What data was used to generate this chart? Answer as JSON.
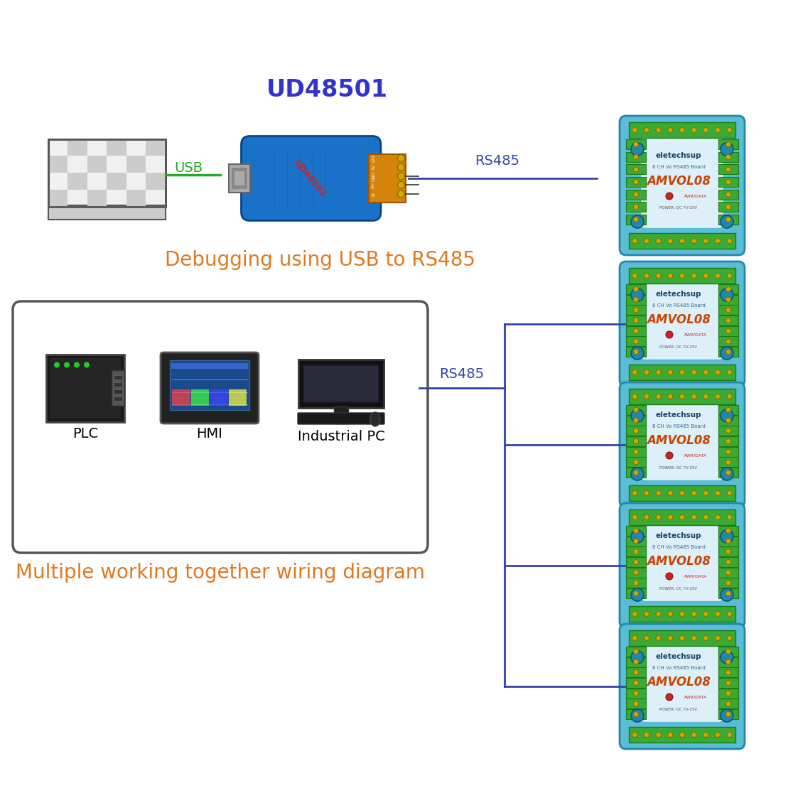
{
  "bg_color": "#ffffff",
  "title_usb": "UD48501",
  "title_usb_color": "#3333cc",
  "title_usb_fontsize": 24,
  "debug_text": "Debugging using USB to RS485",
  "debug_text_color": "#e07820",
  "debug_text_fontsize": 20,
  "multiple_text": "Multiple working together wiring diagram",
  "multiple_text_color": "#e07820",
  "multiple_text_fontsize": 20,
  "rs485_label": "RS485",
  "usb_label": "USB",
  "rs485_color": "#3344aa",
  "usb_color": "#22aa22",
  "plc_label": "PLC",
  "hmi_label": "HMI",
  "industrial_pc_label": "Industrial PC",
  "label_fontsize": 13,
  "line_color": "#3344aa",
  "line_width": 2.0
}
